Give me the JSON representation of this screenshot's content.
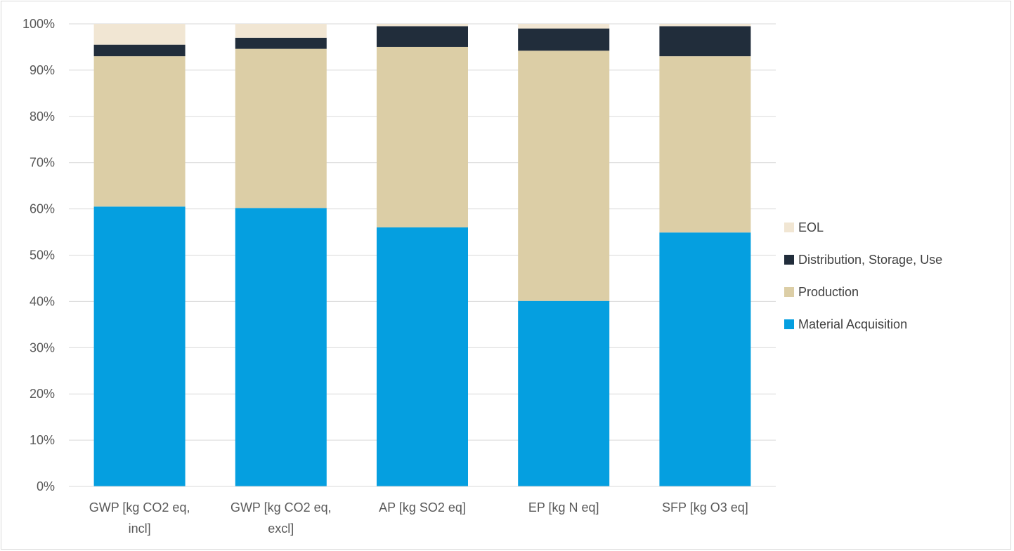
{
  "chart_data": {
    "type": "bar",
    "stacked": true,
    "percent_scale": true,
    "categories": [
      [
        "GWP [kg CO2 eq,",
        "incl]"
      ],
      [
        "GWP [kg CO2 eq,",
        "excl]"
      ],
      [
        "AP [kg SO2 eq]"
      ],
      [
        "EP [kg N eq]"
      ],
      [
        "SFP [kg O3 eq]"
      ]
    ],
    "series": [
      {
        "name": "Material Acquisition",
        "color": "#059FE0",
        "values": [
          60.5,
          60.2,
          56.0,
          40.1,
          54.9
        ]
      },
      {
        "name": "Production",
        "color": "#DCCEA6",
        "values": [
          32.5,
          34.4,
          39.0,
          54.1,
          38.1
        ]
      },
      {
        "name": "Distribution, Storage, Use",
        "color": "#212D3B",
        "values": [
          2.5,
          2.4,
          4.5,
          4.8,
          6.5
        ]
      },
      {
        "name": "EOL",
        "color": "#F1E6D3",
        "values": [
          4.5,
          3.0,
          0.5,
          1.0,
          0.5
        ]
      }
    ],
    "ylim": [
      0,
      100
    ],
    "yticks": [
      "0%",
      "10%",
      "20%",
      "30%",
      "40%",
      "50%",
      "60%",
      "70%",
      "80%",
      "90%",
      "100%"
    ],
    "grid": true,
    "legend": {
      "placement": "right",
      "order": [
        "EOL",
        "Distribution, Storage, Use",
        "Production",
        "Material Acquisition"
      ]
    }
  }
}
